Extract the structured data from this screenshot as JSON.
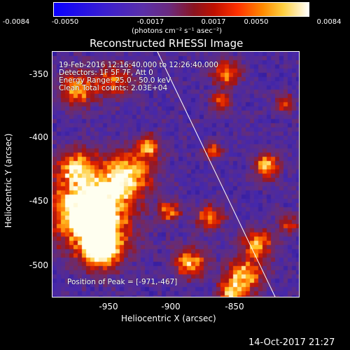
{
  "colorbar": {
    "ticks": [
      "-0.0084",
      "-0.0050",
      "-0.0017",
      "0.0017",
      "0.0050",
      "0.0084"
    ],
    "units_label": "(photons cm⁻² s⁻¹ asec⁻²)",
    "range": [
      -0.0084,
      0.0084
    ]
  },
  "title": "Reconstructed RHESSI Image",
  "info": {
    "line1": "19-Feb-2016 12:16:40.000  to  12:26:40.000",
    "line2": "Detectors: 1F 5F 7F, Att 0",
    "line3": "Energy Range: 25.0 - 50.0 keV",
    "line4": "Clean     Total counts: 2.03E+04"
  },
  "peak": "Position of Peak = [-971,-467]",
  "axes": {
    "xlabel": "Heliocentric X (arcsec)",
    "ylabel": "Heliocentric Y (arcsec)",
    "xlim": [
      -995,
      -813
    ],
    "ylim": [
      -523,
      -333
    ],
    "xticks": [
      "-950",
      "-900",
      "-850"
    ],
    "xtick_values": [
      -950,
      -900,
      -850
    ],
    "yticks": [
      "-350",
      "-400",
      "-450",
      "-500"
    ],
    "ytick_values": [
      -350,
      -400,
      -450,
      -500
    ]
  },
  "timestamp": "14-Oct-2017 21:27"
}
